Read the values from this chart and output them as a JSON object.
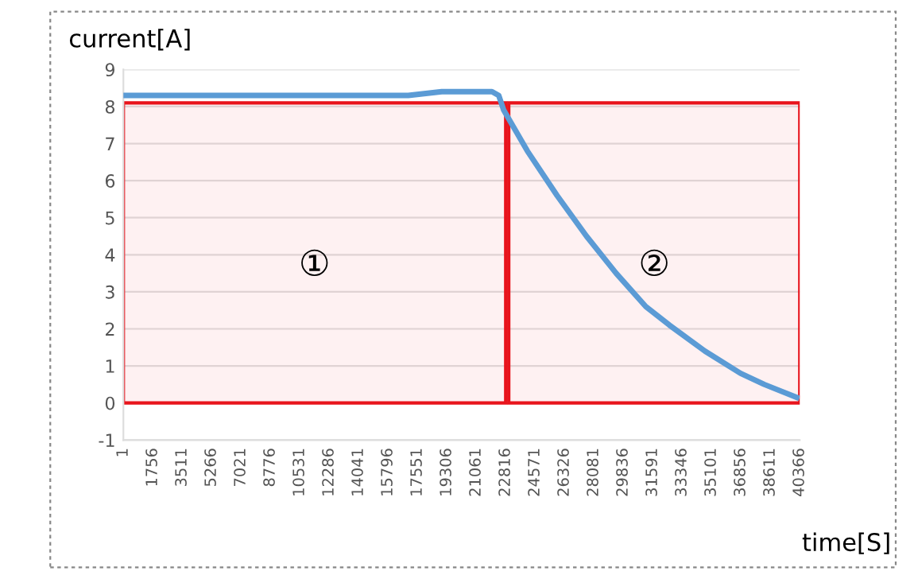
{
  "chart_data": {
    "type": "line",
    "xlabel": "time[S]",
    "ylabel": "current[A]",
    "series": [
      {
        "color": "#5b9bd5",
        "x": [
          1,
          17000,
          19000,
          22000,
          22400,
          22700,
          24110,
          25880,
          27640,
          29410,
          31180,
          32590,
          34710,
          36830,
          38250,
          40190
        ],
        "values": [
          8.3,
          8.3,
          8.4,
          8.4,
          8.3,
          7.9,
          6.8,
          5.6,
          4.5,
          3.5,
          2.6,
          2.1,
          1.4,
          0.8,
          0.5,
          0.15
        ]
      }
    ],
    "xlim": [
      1,
      40366
    ],
    "xticks": [
      1,
      1756,
      3511,
      5266,
      7021,
      8776,
      10531,
      12286,
      14041,
      15796,
      17551,
      19306,
      21061,
      22816,
      24571,
      26326,
      28081,
      29836,
      31591,
      33346,
      35101,
      36856,
      38611,
      40366
    ],
    "ylim": [
      -1,
      9
    ],
    "yticks": [
      -1,
      0,
      1,
      2,
      3,
      4,
      5,
      6,
      7,
      8,
      9
    ],
    "bands": [
      {
        "axis": "x",
        "from": 1,
        "to": 22816,
        "label": "①",
        "color": "#e8141c"
      },
      {
        "axis": "x",
        "from": 23000,
        "to": 40366,
        "label": "②",
        "color": "#e8141c"
      }
    ],
    "grid": "y",
    "marker": "none",
    "line_style": "solid",
    "legend": false
  }
}
